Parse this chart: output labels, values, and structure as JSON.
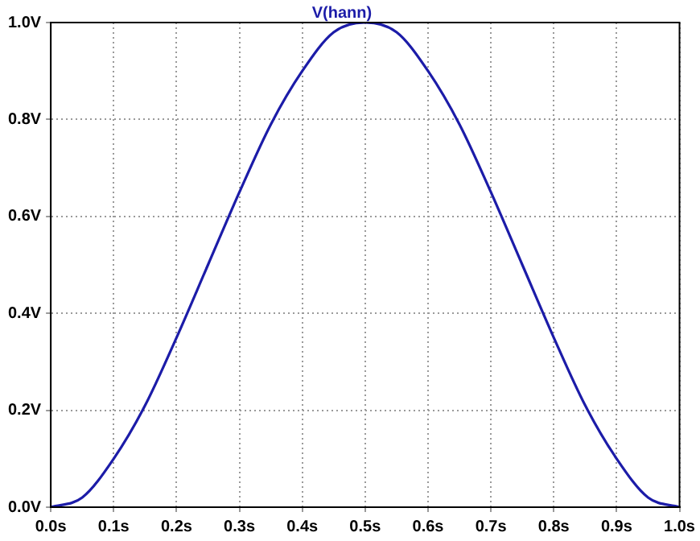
{
  "chart_data": {
    "type": "line",
    "title": "V(hann)",
    "x": [
      0,
      0.05,
      0.1,
      0.15,
      0.2,
      0.25,
      0.3,
      0.35,
      0.4,
      0.45,
      0.5,
      0.55,
      0.6,
      0.65,
      0.7,
      0.75,
      0.8,
      0.85,
      0.9,
      0.95,
      1.0
    ],
    "series": [
      {
        "color": "#1c1ca8",
        "values": [
          0,
          0.02,
          0.1,
          0.21,
          0.35,
          0.5,
          0.65,
          0.79,
          0.9,
          0.98,
          1,
          0.98,
          0.9,
          0.79,
          0.65,
          0.5,
          0.35,
          0.21,
          0.1,
          0.02,
          0
        ]
      }
    ],
    "xlim": [
      0,
      1
    ],
    "ylim": [
      0,
      1
    ],
    "xticks": [
      {
        "value": 0,
        "label": "0.0s"
      },
      {
        "value": 0.1,
        "label": "0.1s"
      },
      {
        "value": 0.2,
        "label": "0.2s"
      },
      {
        "value": 0.3,
        "label": "0.3s"
      },
      {
        "value": 0.4,
        "label": "0.4s"
      },
      {
        "value": 0.5,
        "label": "0.5s"
      },
      {
        "value": 0.6,
        "label": "0.6s"
      },
      {
        "value": 0.7,
        "label": "0.7s"
      },
      {
        "value": 0.8,
        "label": "0.8s"
      },
      {
        "value": 0.9,
        "label": "0.9s"
      },
      {
        "value": 1,
        "label": "1.0s"
      }
    ],
    "yticks": [
      {
        "value": 0,
        "label": "0.0V"
      },
      {
        "value": 0.2,
        "label": "0.2V"
      },
      {
        "value": 0.4,
        "label": "0.4V"
      },
      {
        "value": 0.6,
        "label": "0.6V"
      },
      {
        "value": 0.8,
        "label": "0.8V"
      },
      {
        "value": 1,
        "label": "1.0V"
      }
    ],
    "grid": true,
    "legend": false,
    "marker": "none",
    "line_style": "solid"
  }
}
